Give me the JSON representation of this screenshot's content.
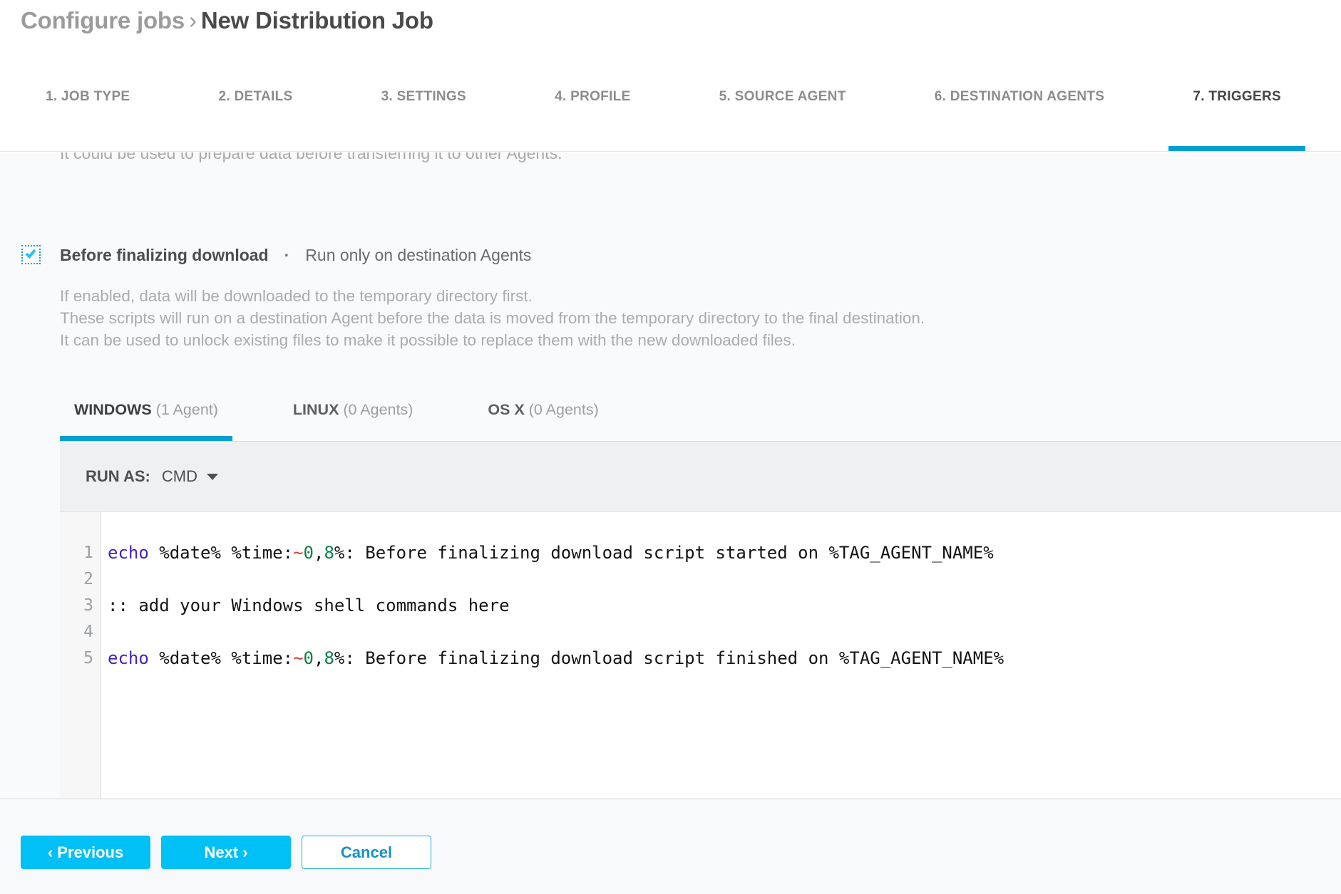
{
  "header": {
    "breadcrumb_parent": "Configure jobs",
    "breadcrumb_separator": "›",
    "title": "New Distribution Job",
    "steps": [
      {
        "label": "1. JOB TYPE",
        "active": false
      },
      {
        "label": "2. DETAILS",
        "active": false
      },
      {
        "label": "3. SETTINGS",
        "active": false
      },
      {
        "label": "4. PROFILE",
        "active": false
      },
      {
        "label": "5. SOURCE AGENT",
        "active": false
      },
      {
        "label": "6. DESTINATION AGENTS",
        "active": false
      },
      {
        "label": "7. TRIGGERS",
        "active": true
      }
    ]
  },
  "content": {
    "clipped_line": "It could be used to prepare data before transferring it to other Agents.",
    "trigger": {
      "checkbox_checked": true,
      "label": "Before finalizing download",
      "separator": "·",
      "note": "Run only on destination Agents",
      "description_lines": [
        "If enabled, data will be downloaded to the temporary directory first.",
        "These scripts will run on a destination Agent before the data is moved from the temporary directory to the final destination.",
        "It can be used to unlock existing files to make it possible to replace them with the new downloaded files."
      ]
    },
    "os_tabs": [
      {
        "name": "WINDOWS",
        "count": "(1 Agent)",
        "active": true
      },
      {
        "name": "LINUX",
        "count": "(0 Agents)",
        "active": false
      },
      {
        "name": "OS X",
        "count": "(0 Agents)",
        "active": false
      }
    ],
    "toolbar": {
      "run_as_label": "RUN AS:",
      "run_as_value": "CMD",
      "caret_icon": "caret-down"
    },
    "editor": {
      "lines": [
        {
          "number": "1",
          "tokens": [
            {
              "t": "echo",
              "c": "kw"
            },
            {
              "t": " %date% %time:",
              "c": "plain"
            },
            {
              "t": "~",
              "c": "red"
            },
            {
              "t": "0",
              "c": "num"
            },
            {
              "t": ",",
              "c": "plain"
            },
            {
              "t": "8",
              "c": "num"
            },
            {
              "t": "%: Before finalizing download script started on %TAG_AGENT_NAME%",
              "c": "plain"
            }
          ]
        },
        {
          "number": "2",
          "tokens": []
        },
        {
          "number": "3",
          "tokens": [
            {
              "t": ":: add your Windows shell commands here",
              "c": "plain"
            }
          ]
        },
        {
          "number": "4",
          "tokens": []
        },
        {
          "number": "5",
          "tokens": [
            {
              "t": "echo",
              "c": "kw"
            },
            {
              "t": " %date% %time:",
              "c": "plain"
            },
            {
              "t": "~",
              "c": "red"
            },
            {
              "t": "0",
              "c": "num"
            },
            {
              "t": ",",
              "c": "plain"
            },
            {
              "t": "8",
              "c": "num"
            },
            {
              "t": "%: Before finalizing download script finished on %TAG_AGENT_NAME%",
              "c": "plain"
            }
          ]
        }
      ]
    }
  },
  "footer": {
    "previous_label": "‹ Previous",
    "next_label": "Next ›",
    "cancel_label": "Cancel"
  },
  "colors": {
    "accent_button": "#00c0f5",
    "accent_underline": "#009fd1",
    "cancel_text": "#1692c0",
    "keyword": "#4623be",
    "number": "#0d8046",
    "tilde": "#d73c32"
  }
}
